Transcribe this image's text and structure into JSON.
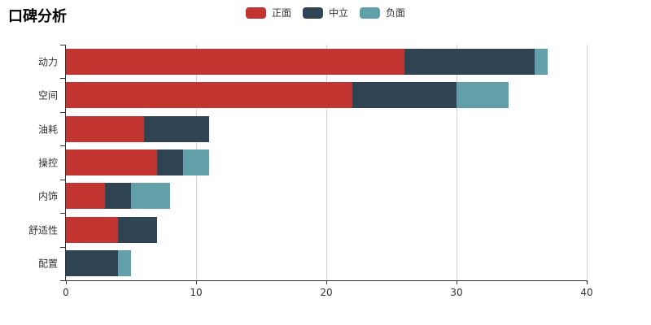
{
  "title": "口碑分析",
  "colors": {
    "positive": "#c23531",
    "neutral": "#2f4554",
    "negative": "#61a0a8",
    "axis": "#333333",
    "grid": "#d4d4d4",
    "text": "#333333"
  },
  "chart_data": {
    "type": "bar",
    "orientation": "horizontal",
    "stacked": true,
    "title": "口碑分析",
    "categories": [
      "动力",
      "空间",
      "油耗",
      "操控",
      "内饰",
      "舒适性",
      "配置"
    ],
    "series": [
      {
        "name": "正面",
        "key": "positive",
        "color": "#c23531",
        "values": [
          26,
          22,
          6,
          7,
          3,
          4,
          0
        ]
      },
      {
        "name": "中立",
        "key": "neutral",
        "color": "#2f4554",
        "values": [
          10,
          8,
          5,
          2,
          2,
          3,
          4
        ]
      },
      {
        "name": "负面",
        "key": "negative",
        "color": "#61a0a8",
        "values": [
          1,
          4,
          0,
          2,
          3,
          0,
          1
        ]
      }
    ],
    "totals": [
      37,
      34,
      11,
      11,
      8,
      7,
      5
    ],
    "xlim": [
      0,
      40
    ],
    "x_ticks": [
      0,
      10,
      20,
      30,
      40
    ],
    "xlabel": "",
    "ylabel": "",
    "grid": true,
    "legend_position": "top-center"
  }
}
